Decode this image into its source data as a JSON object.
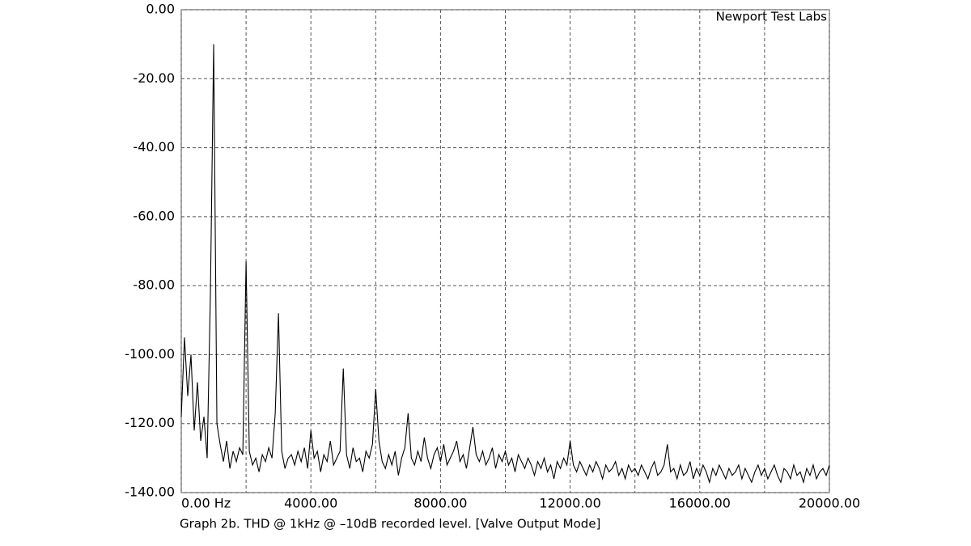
{
  "chart_data": {
    "type": "line",
    "annotation": "Newport Test Labs",
    "caption": "Graph 2b. THD @ 1kHz @ –10dB recorded level. [Valve Output Mode]",
    "xlim": [
      0,
      20000
    ],
    "ylim": [
      -140,
      0
    ],
    "xticks": [
      {
        "value": 0,
        "label": "0.00 Hz"
      },
      {
        "value": 4000,
        "label": "4000.00"
      },
      {
        "value": 8000,
        "label": "8000.00"
      },
      {
        "value": 12000,
        "label": "12000.00"
      },
      {
        "value": 16000,
        "label": "16000.00"
      },
      {
        "value": 20000,
        "label": "20000.00"
      }
    ],
    "minor_xticks": [
      2000,
      6000,
      10000,
      14000,
      18000
    ],
    "yticks": [
      {
        "value": -140,
        "label": "-140.00"
      },
      {
        "value": -120,
        "label": "-120.00"
      },
      {
        "value": -100,
        "label": "-100.00"
      },
      {
        "value": -80,
        "label": "-80.00"
      },
      {
        "value": -60,
        "label": "-60.00"
      },
      {
        "value": -40,
        "label": "-40.00"
      },
      {
        "value": -20,
        "label": "-20.00"
      },
      {
        "value": 0,
        "label": "0.00"
      }
    ],
    "grid": true,
    "series": [
      {
        "color": "#000000",
        "x": [
          0,
          100,
          200,
          300,
          400,
          500,
          600,
          700,
          800,
          900,
          1000,
          1100,
          1200,
          1300,
          1400,
          1500,
          1600,
          1700,
          1800,
          1900,
          2000,
          2100,
          2200,
          2300,
          2400,
          2500,
          2600,
          2700,
          2800,
          2900,
          3000,
          3100,
          3200,
          3300,
          3400,
          3500,
          3600,
          3700,
          3800,
          3900,
          4000,
          4100,
          4200,
          4300,
          4400,
          4500,
          4600,
          4700,
          4800,
          4900,
          5000,
          5100,
          5200,
          5300,
          5400,
          5500,
          5600,
          5700,
          5800,
          5900,
          6000,
          6100,
          6200,
          6300,
          6400,
          6500,
          6600,
          6700,
          6800,
          6900,
          7000,
          7100,
          7200,
          7300,
          7400,
          7500,
          7600,
          7700,
          7800,
          7900,
          8000,
          8100,
          8200,
          8300,
          8400,
          8500,
          8600,
          8700,
          8800,
          8900,
          9000,
          9100,
          9200,
          9300,
          9400,
          9500,
          9600,
          9700,
          9800,
          9900,
          10000,
          10100,
          10200,
          10300,
          10400,
          10500,
          10600,
          10700,
          10800,
          10900,
          11000,
          11100,
          11200,
          11300,
          11400,
          11500,
          11600,
          11700,
          11800,
          11900,
          12000,
          12100,
          12200,
          12300,
          12400,
          12500,
          12600,
          12700,
          12800,
          12900,
          13000,
          13100,
          13200,
          13300,
          13400,
          13500,
          13600,
          13700,
          13800,
          13900,
          14000,
          14100,
          14200,
          14300,
          14400,
          14500,
          14600,
          14700,
          14800,
          14900,
          15000,
          15100,
          15200,
          15300,
          15400,
          15500,
          15600,
          15700,
          15800,
          15900,
          16000,
          16100,
          16200,
          16300,
          16400,
          16500,
          16600,
          16700,
          16800,
          16900,
          17000,
          17100,
          17200,
          17300,
          17400,
          17500,
          17600,
          17700,
          17800,
          17900,
          18000,
          18100,
          18200,
          18300,
          18400,
          18500,
          18600,
          18700,
          18800,
          18900,
          19000,
          19100,
          19200,
          19300,
          19400,
          19500,
          19600,
          19700,
          19800,
          19900,
          20000
        ],
        "values": [
          -118,
          -95,
          -112,
          -100,
          -122,
          -108,
          -125,
          -118,
          -130,
          -82,
          -10,
          -120,
          -126,
          -131,
          -125,
          -133,
          -128,
          -131,
          -127,
          -129,
          -73,
          -128,
          -132,
          -130,
          -134,
          -129,
          -131,
          -127,
          -130,
          -117,
          -88,
          -128,
          -133,
          -130,
          -129,
          -132,
          -128,
          -131,
          -127,
          -133,
          -122,
          -130,
          -128,
          -134,
          -129,
          -131,
          -125,
          -132,
          -130,
          -128,
          -104,
          -129,
          -133,
          -127,
          -131,
          -130,
          -134,
          -128,
          -130,
          -126,
          -110,
          -125,
          -131,
          -133,
          -129,
          -132,
          -128,
          -135,
          -130,
          -127,
          -117,
          -130,
          -132,
          -128,
          -131,
          -124,
          -130,
          -133,
          -129,
          -127,
          -131,
          -126,
          -132,
          -130,
          -128,
          -125,
          -131,
          -129,
          -133,
          -127,
          -121,
          -129,
          -131,
          -128,
          -132,
          -130,
          -127,
          -133,
          -129,
          -131,
          -128,
          -132,
          -130,
          -134,
          -129,
          -131,
          -133,
          -130,
          -132,
          -135,
          -131,
          -133,
          -130,
          -134,
          -132,
          -136,
          -131,
          -133,
          -130,
          -132,
          -125,
          -132,
          -134,
          -131,
          -133,
          -135,
          -132,
          -134,
          -131,
          -133,
          -136,
          -132,
          -134,
          -133,
          -131,
          -135,
          -133,
          -136,
          -132,
          -134,
          -133,
          -135,
          -132,
          -134,
          -136,
          -133,
          -131,
          -135,
          -134,
          -132,
          -126,
          -134,
          -133,
          -136,
          -132,
          -135,
          -134,
          -131,
          -136,
          -133,
          -135,
          -132,
          -134,
          -137,
          -133,
          -135,
          -132,
          -134,
          -136,
          -133,
          -135,
          -134,
          -132,
          -136,
          -133,
          -135,
          -137,
          -134,
          -132,
          -135,
          -133,
          -136,
          -134,
          -132,
          -135,
          -137,
          -133,
          -134,
          -136,
          -132,
          -135,
          -134,
          -137,
          -133,
          -135,
          -132,
          -136,
          -134,
          -133,
          -135,
          -132
        ]
      }
    ]
  }
}
